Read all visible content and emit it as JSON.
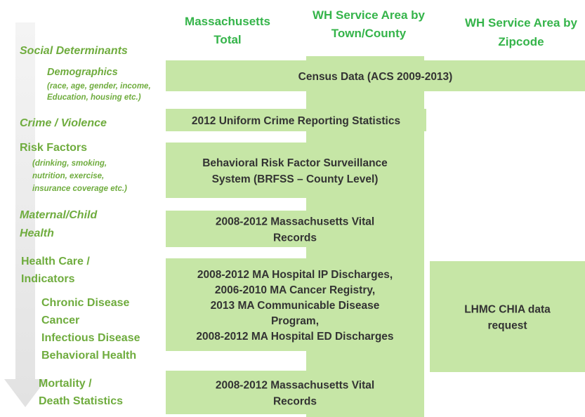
{
  "headers": [
    [
      "Massachusetts",
      "Total"
    ],
    [
      "WH Service Area by",
      "Town/County"
    ],
    [
      "WH Service Area by",
      "Zipcode"
    ]
  ],
  "labels": [
    [
      "Social Determinants"
    ],
    [
      "Demographics"
    ],
    [
      "(race, age, gender, income,",
      "Education, housing etc.)"
    ],
    [
      "Crime / Violence"
    ],
    [
      "Risk Factors"
    ],
    [
      "(drinking, smoking,",
      "nutrition, exercise,",
      "insurance coverage etc.)"
    ],
    [
      "Maternal/Child",
      "Health"
    ],
    [
      "Health Care /",
      "Indicators"
    ],
    [
      "Chronic Disease",
      "Cancer",
      "Infectious Disease",
      "Behavioral Health"
    ],
    [
      "Mortality /",
      "Death Statistics"
    ]
  ],
  "boxes": [
    [
      "Census Data  (ACS 2009-2013)"
    ],
    [
      "2012 Uniform Crime Reporting Statistics"
    ],
    [
      "Behavioral Risk Factor Surveillance",
      "System (BRFSS – County Level)"
    ],
    [
      "2008-2012 Massachusetts Vital",
      "Records"
    ],
    [
      "2008-2012 MA Hospital IP Discharges,",
      "2006-2010 MA Cancer Registry,",
      "2013 MA Communicable  Disease",
      "Program,",
      "2008-2012 MA Hospital ED Discharges"
    ],
    [
      "LHMC CHIA data",
      "request"
    ],
    [
      "2008-2012 Massachusetts Vital",
      "Records"
    ]
  ]
}
